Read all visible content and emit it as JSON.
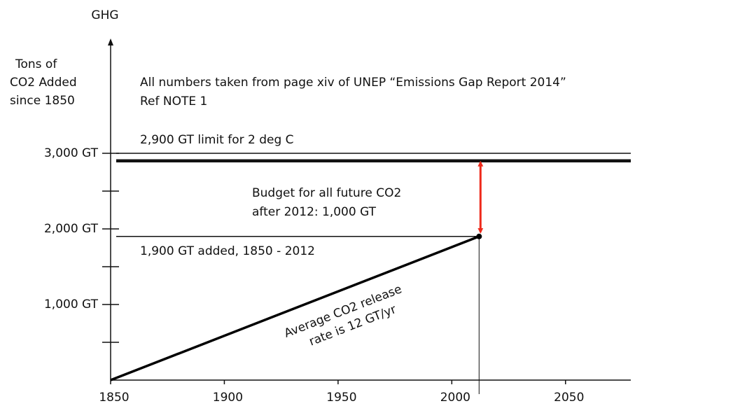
{
  "chart_data": {
    "type": "line",
    "axis_title": "GHG",
    "ylabel": [
      "Tons of",
      "CO2 Added",
      "since 1850"
    ],
    "title": [
      "All numbers taken from page xiv of UNEP “Emissions Gap Report 2014”",
      "Ref NOTE 1"
    ],
    "xlim": [
      1850,
      2075
    ],
    "xticks": [
      1850,
      1900,
      1950,
      2000,
      2050
    ],
    "ylim": [
      0,
      4500
    ],
    "yticks": [
      {
        "value": 1000,
        "label": "1,000 GT"
      },
      {
        "value": 2000,
        "label": "2,000 GT"
      },
      {
        "value": 3000,
        "label": "3,000 GT"
      }
    ],
    "yminorticks": [
      500,
      1500,
      2500
    ],
    "series": [
      {
        "name": "CO2 added",
        "color": "#000000",
        "x": [
          1850,
          2012
        ],
        "values": [
          0,
          1900
        ]
      }
    ],
    "hlines": [
      {
        "y": 3000,
        "width": 1.5
      },
      {
        "y": 2900,
        "width": 4.5,
        "label": "2,900 GT limit for 2 deg C"
      }
    ],
    "point_label": "1,900 GT added, 1850 - 2012",
    "budget": {
      "value": 1000,
      "color": "#ee2a1b",
      "label": [
        "Budget for all future CO2",
        "after 2012:     1,000 GT"
      ]
    },
    "slope_label": [
      "Average CO2 release",
      "rate is 12 GT/yr"
    ]
  }
}
